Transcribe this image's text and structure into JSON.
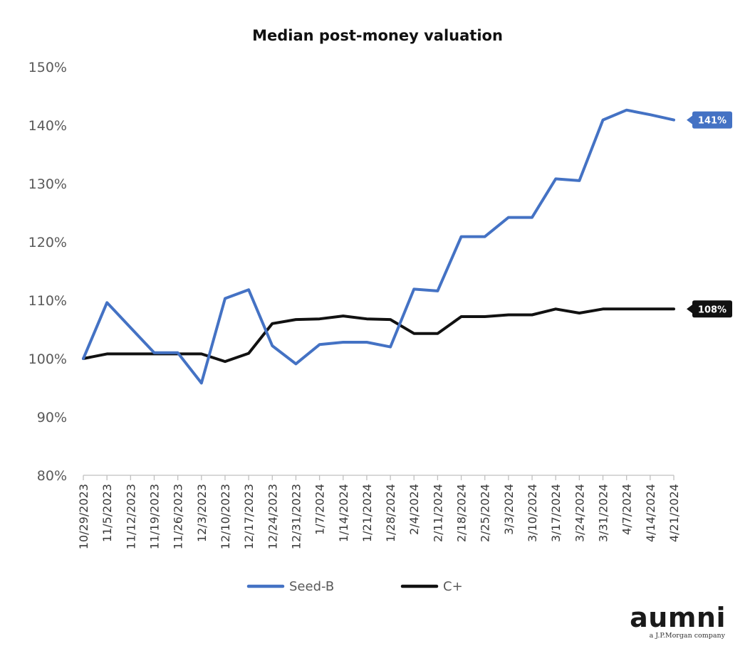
{
  "chart_data": {
    "type": "line",
    "title": "Median post-money valuation",
    "xlabel": "",
    "ylabel": "",
    "ylim": [
      80,
      150
    ],
    "yticks": [
      "80%",
      "90%",
      "100%",
      "110%",
      "120%",
      "130%",
      "140%",
      "150%"
    ],
    "ytick_values": [
      80,
      90,
      100,
      110,
      120,
      130,
      140,
      150
    ],
    "categories": [
      "10/29/2023",
      "11/5/2023",
      "11/12/2023",
      "11/19/2023",
      "11/26/2023",
      "12/3/2023",
      "12/10/2023",
      "12/17/2023",
      "12/24/2023",
      "12/31/2023",
      "1/7/2024",
      "1/14/2024",
      "1/21/2024",
      "1/28/2024",
      "2/4/2024",
      "2/11/2024",
      "2/18/2024",
      "2/25/2024",
      "3/3/2024",
      "3/10/2024",
      "3/17/2024",
      "3/24/2024",
      "3/31/2024",
      "4/7/2024",
      "4/14/2024",
      "4/21/2024"
    ],
    "series": [
      {
        "name": "Seed-B",
        "color": "#4472C4",
        "values": [
          100,
          109.6,
          105.3,
          101.0,
          101.0,
          95.8,
          110.3,
          111.8,
          102.2,
          99.1,
          102.4,
          102.8,
          102.8,
          102.0,
          111.9,
          111.6,
          120.9,
          120.9,
          124.2,
          124.2,
          130.8,
          130.5,
          140.9,
          142.6,
          141.8,
          140.9
        ],
        "end_label": "141%"
      },
      {
        "name": "C+",
        "color": "#111111",
        "values": [
          100,
          100.8,
          100.8,
          100.8,
          100.8,
          100.8,
          99.5,
          100.9,
          106.0,
          106.7,
          106.8,
          107.3,
          106.8,
          106.7,
          104.3,
          104.3,
          107.2,
          107.2,
          107.5,
          107.5,
          108.5,
          107.8,
          108.5,
          108.5,
          108.5,
          108.5
        ],
        "end_label": "108%"
      }
    ],
    "legend_position": "bottom",
    "grid": false
  },
  "branding": {
    "logo_text": "aumni",
    "tagline": "a J.P.Morgan company"
  }
}
